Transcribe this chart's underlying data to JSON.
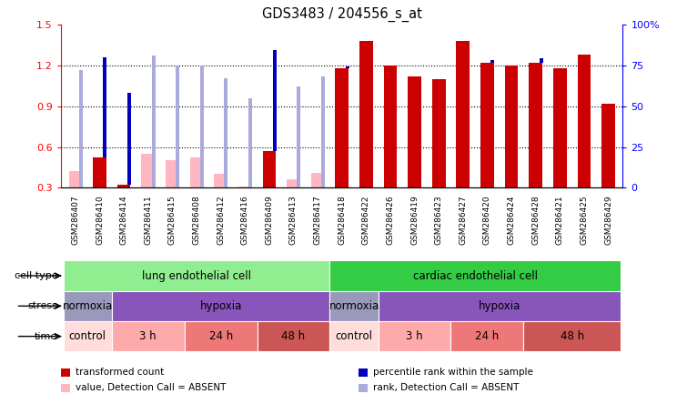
{
  "title": "GDS3483 / 204556_s_at",
  "samples": [
    "GSM286407",
    "GSM286410",
    "GSM286414",
    "GSM286411",
    "GSM286415",
    "GSM286408",
    "GSM286412",
    "GSM286416",
    "GSM286409",
    "GSM286413",
    "GSM286417",
    "GSM286418",
    "GSM286422",
    "GSM286426",
    "GSM286419",
    "GSM286423",
    "GSM286427",
    "GSM286420",
    "GSM286424",
    "GSM286428",
    "GSM286421",
    "GSM286425",
    "GSM286429"
  ],
  "transformed_count": [
    0.42,
    0.52,
    0.32,
    0.54,
    0.48,
    0.47,
    0.38,
    0.31,
    0.57,
    0.36,
    0.39,
    1.18,
    1.38,
    1.2,
    1.12,
    1.1,
    1.38,
    1.22,
    1.2,
    1.22,
    1.18,
    1.28,
    0.92
  ],
  "percentile_rank_pct": [
    72,
    80,
    58,
    81,
    75,
    75,
    67,
    55,
    84,
    62,
    68,
    74,
    82,
    74,
    68,
    64,
    84,
    78,
    74,
    79,
    72,
    79,
    50
  ],
  "absent_value": [
    0.42,
    0.0,
    0.0,
    0.55,
    0.5,
    0.52,
    0.4,
    0.31,
    0.0,
    0.36,
    0.41,
    0.0,
    0.0,
    0.0,
    0.0,
    0.0,
    0.0,
    0.0,
    0.0,
    0.0,
    0.0,
    0.0,
    0.0
  ],
  "absent_rank_pct": [
    72,
    0,
    0,
    81,
    75,
    75,
    67,
    55,
    0,
    62,
    68,
    0,
    0,
    0,
    0,
    0,
    0,
    0,
    0,
    0,
    0,
    0,
    0
  ],
  "is_absent": [
    true,
    false,
    false,
    true,
    true,
    true,
    true,
    true,
    false,
    true,
    true,
    false,
    false,
    false,
    false,
    false,
    false,
    false,
    false,
    false,
    false,
    false,
    false
  ],
  "ylim_left": [
    0.3,
    1.5
  ],
  "ylim_right": [
    0,
    100
  ],
  "yticks_left": [
    0.3,
    0.6,
    0.9,
    1.2,
    1.5
  ],
  "yticks_right": [
    0,
    25,
    50,
    75,
    100
  ],
  "cell_type_groups": [
    {
      "label": "lung endothelial cell",
      "start": 0,
      "end": 11,
      "color": "#90EE90"
    },
    {
      "label": "cardiac endothelial cell",
      "start": 11,
      "end": 23,
      "color": "#33CC44"
    }
  ],
  "stress_groups": [
    {
      "label": "normoxia",
      "start": 0,
      "end": 2,
      "color": "#9999BB"
    },
    {
      "label": "hypoxia",
      "start": 2,
      "end": 11,
      "color": "#8855BB"
    },
    {
      "label": "normoxia",
      "start": 11,
      "end": 13,
      "color": "#9999BB"
    },
    {
      "label": "hypoxia",
      "start": 13,
      "end": 23,
      "color": "#8855BB"
    }
  ],
  "time_groups": [
    {
      "label": "control",
      "start": 0,
      "end": 2,
      "color": "#FFDDDD"
    },
    {
      "label": "3 h",
      "start": 2,
      "end": 5,
      "color": "#FFAAAA"
    },
    {
      "label": "24 h",
      "start": 5,
      "end": 8,
      "color": "#EE7777"
    },
    {
      "label": "48 h",
      "start": 8,
      "end": 11,
      "color": "#CC5555"
    },
    {
      "label": "control",
      "start": 11,
      "end": 13,
      "color": "#FFDDDD"
    },
    {
      "label": "3 h",
      "start": 13,
      "end": 16,
      "color": "#FFAAAA"
    },
    {
      "label": "24 h",
      "start": 16,
      "end": 19,
      "color": "#EE7777"
    },
    {
      "label": "48 h",
      "start": 19,
      "end": 23,
      "color": "#CC5555"
    }
  ],
  "bar_color_red": "#CC0000",
  "bar_color_blue": "#0000BB",
  "bar_color_pink": "#FFB6C1",
  "bar_color_lightblue": "#AAAADD",
  "tick_label_bg": "#CCCCCC",
  "fig_bg": "#FFFFFF",
  "label_fontsize": 6.5,
  "annot_fontsize": 8.5,
  "row_label_fontsize": 8.0
}
